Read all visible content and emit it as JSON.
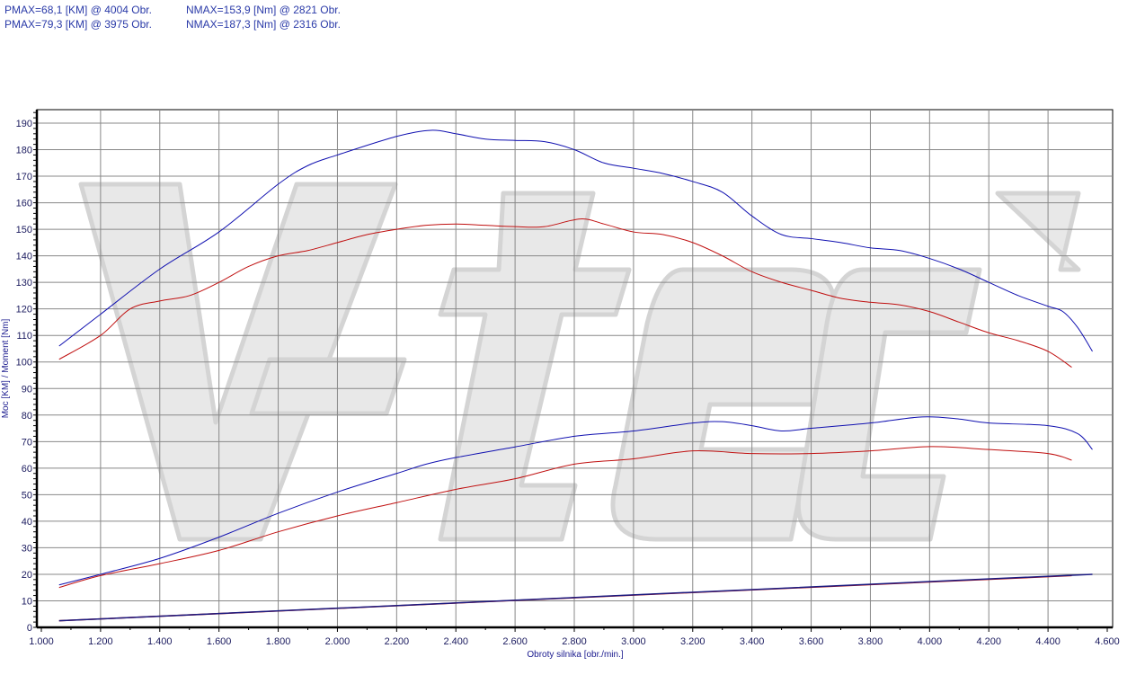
{
  "header": {
    "rows": [
      {
        "pmax": "PMAX=68,1 [KM] @ 4004 Obr.",
        "nmax": "NMAX=153,9 [Nm] @ 2821 Obr."
      },
      {
        "pmax": "PMAX=79,3 [KM] @ 3975 Obr.",
        "nmax": "NMAX=187,3 [Nm] @ 2316 Obr."
      }
    ]
  },
  "watermark": "V-tech",
  "chart_data": {
    "type": "line",
    "xlabel": "Obroty silnika [obr./min.]",
    "ylabel": "Moc [KM] / Moment [Nm]",
    "xlim": [
      1000,
      4600
    ],
    "ylim": [
      0,
      195
    ],
    "xticks": [
      "1.000",
      "1.200",
      "1.400",
      "1.600",
      "1.800",
      "2.000",
      "2.200",
      "2.400",
      "2.600",
      "2.800",
      "3.000",
      "3.200",
      "3.400",
      "3.600",
      "3.800",
      "4.000",
      "4.200",
      "4.400",
      "4.600"
    ],
    "yticks": [
      "0",
      "10",
      "20",
      "30",
      "40",
      "50",
      "60",
      "70",
      "80",
      "90",
      "100",
      "110",
      "120",
      "130",
      "140",
      "150",
      "160",
      "170",
      "180",
      "190"
    ],
    "grid": true,
    "colors": {
      "blue": "#1010b0",
      "red": "#c01010",
      "loss": "#3a1a6a"
    },
    "series": [
      {
        "color": "#1010b0",
        "kind": "torque",
        "x": [
          1060,
          1200,
          1400,
          1600,
          1800,
          1900,
          2000,
          2200,
          2316,
          2400,
          2500,
          2600,
          2700,
          2800,
          2900,
          3000,
          3100,
          3200,
          3300,
          3400,
          3500,
          3600,
          3700,
          3800,
          3900,
          4000,
          4100,
          4200,
          4300,
          4400,
          4450,
          4500,
          4550
        ],
        "y": [
          106,
          118,
          135,
          149,
          167,
          174,
          178,
          185,
          187.3,
          186,
          184,
          183.5,
          183,
          180,
          175,
          173,
          171,
          168,
          164,
          155,
          148,
          146.5,
          145,
          143,
          142,
          139,
          135,
          130,
          125,
          121,
          119,
          113,
          104
        ]
      },
      {
        "color": "#c01010",
        "kind": "torque",
        "x": [
          1060,
          1200,
          1300,
          1400,
          1500,
          1600,
          1700,
          1800,
          1900,
          2000,
          2100,
          2200,
          2300,
          2400,
          2500,
          2600,
          2700,
          2821,
          2900,
          3000,
          3100,
          3200,
          3300,
          3400,
          3500,
          3600,
          3700,
          3800,
          3900,
          4000,
          4100,
          4200,
          4300,
          4400,
          4480
        ],
        "y": [
          101,
          110,
          120,
          123,
          125,
          130,
          136,
          140,
          142,
          145,
          148,
          150,
          151.5,
          152,
          151.5,
          151,
          151,
          153.9,
          152,
          149,
          148,
          145,
          140,
          134,
          130,
          127,
          124,
          122.5,
          121.5,
          119,
          115,
          111,
          108,
          104,
          98
        ]
      },
      {
        "color": "#1010b0",
        "kind": "power",
        "x": [
          1060,
          1200,
          1400,
          1600,
          1800,
          2000,
          2200,
          2300,
          2400,
          2600,
          2800,
          3000,
          3200,
          3300,
          3400,
          3500,
          3600,
          3800,
          3975,
          4100,
          4200,
          4400,
          4500,
          4550
        ],
        "y": [
          16,
          20,
          26,
          34,
          43,
          51,
          58,
          61.5,
          64,
          68,
          72,
          74,
          77,
          77.5,
          76,
          74,
          75,
          77,
          79.3,
          78.5,
          77,
          76,
          73,
          67
        ]
      },
      {
        "color": "#c01010",
        "kind": "power",
        "x": [
          1060,
          1200,
          1400,
          1600,
          1800,
          2000,
          2200,
          2400,
          2600,
          2800,
          3000,
          3200,
          3400,
          3600,
          3800,
          4004,
          4200,
          4400,
          4480
        ],
        "y": [
          15,
          19.5,
          24,
          29,
          36,
          42,
          47,
          52,
          56,
          61.5,
          63.5,
          66.5,
          65.5,
          65.5,
          66.5,
          68.1,
          67,
          65.5,
          63
        ]
      },
      {
        "color": "#c01010",
        "kind": "loss",
        "x": [
          1060,
          4480
        ],
        "y": [
          2.5,
          19.5
        ]
      },
      {
        "color": "#1a1a80",
        "kind": "loss",
        "x": [
          1060,
          4550
        ],
        "y": [
          2.5,
          20
        ]
      }
    ]
  }
}
